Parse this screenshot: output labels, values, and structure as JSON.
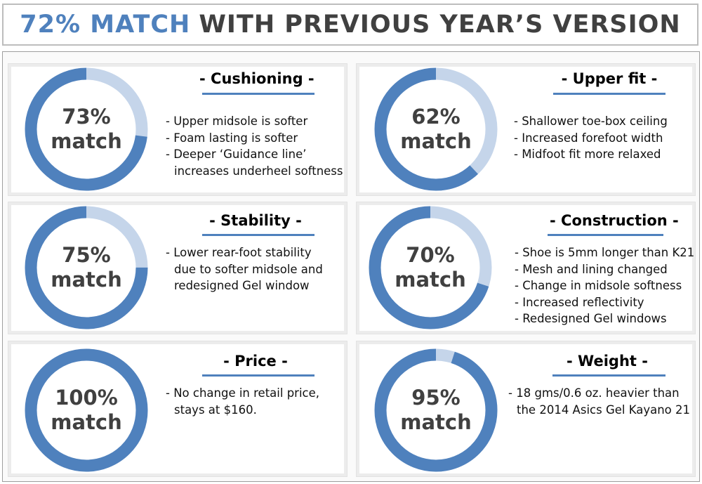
{
  "header": {
    "accent": "72% MATCH",
    "rest": "WITH PREVIOUS YEAR’S VERSION"
  },
  "colors": {
    "ring_fill": "#4f81bd",
    "ring_rest": "#c5d5ea",
    "title_bar": "#4f81bd"
  },
  "chart_data": [
    {
      "type": "pie",
      "title": "- Cushioning -",
      "value": 73,
      "label_line1": "73%",
      "label_line2": "match",
      "bullets": [
        [
          "- Upper midsole is softer"
        ],
        [
          "- Foam lasting is softer"
        ],
        [
          "- Deeper ‘Guidance line’",
          "increases underheel softness"
        ]
      ]
    },
    {
      "type": "pie",
      "title": "- Upper fit -",
      "value": 62,
      "label_line1": "62%",
      "label_line2": "match",
      "bullets": [
        [
          "- Shallower toe-box ceiling"
        ],
        [
          "- Increased forefoot width"
        ],
        [
          "- Midfoot fit more relaxed"
        ]
      ]
    },
    {
      "type": "pie",
      "title": "- Stability -",
      "value": 75,
      "label_line1": "75%",
      "label_line2": "match",
      "bullets": [
        [
          "- Lower rear-foot stability",
          "due to softer midsole and",
          "redesigned Gel window"
        ]
      ]
    },
    {
      "type": "pie",
      "title": "- Construction -",
      "value": 70,
      "label_line1": "70%",
      "label_line2": "match",
      "bullets": [
        [
          "- Shoe is 5mm longer than K21"
        ],
        [
          "- Mesh and lining changed"
        ],
        [
          "- Change in midsole softness"
        ],
        [
          "- Increased reflectivity"
        ],
        [
          "- Redesigned Gel windows"
        ]
      ]
    },
    {
      "type": "pie",
      "title": "- Price -",
      "value": 100,
      "label_line1": "100%",
      "label_line2": "match",
      "bullets": [
        [
          "-  No change in retail price,",
          "stays at $160."
        ]
      ]
    },
    {
      "type": "pie",
      "title": "- Weight -",
      "value": 95,
      "label_line1": "95%",
      "label_line2": "match",
      "bullets": [
        [
          "- 18 gms/0.6 oz. heavier than",
          "the 2014 Asics Gel Kayano 21"
        ]
      ]
    }
  ]
}
